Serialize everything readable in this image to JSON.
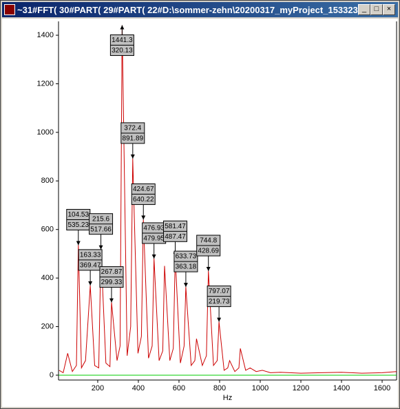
{
  "window": {
    "title": "~31#FFT( 30#PART( 29#PART( 22#D:\\sommer-zehn\\20200317_myProject_153323..."
  },
  "chart_data": {
    "type": "line",
    "xlabel": "Hz",
    "xlim": [
      7,
      1671
    ],
    "ylim": [
      -20,
      1457
    ],
    "xticks": [
      200,
      400,
      600,
      800,
      1000,
      1200,
      1400,
      1600
    ],
    "yticks": [
      0,
      200,
      400,
      600,
      800,
      1000,
      1200,
      1400
    ],
    "series": [
      {
        "color": "#cc0000",
        "x": [
          10,
          30,
          52,
          75,
          95,
          104.53,
          120,
          140,
          163.33,
          185,
          205,
          215.6,
          240,
          260,
          267.87,
          295,
          310,
          320.13,
          345,
          362,
          372.4,
          398,
          415,
          424.67,
          450,
          468,
          476.93,
          502,
          520,
          529,
          555,
          572,
          581.47,
          607,
          625,
          633.73,
          660,
          678,
          686,
          715,
          735,
          744.8,
          770,
          788,
          797.07,
          822,
          840,
          849,
          875,
          895,
          902,
          928,
          950,
          980,
          1010,
          1050,
          1100,
          1200,
          1300,
          1400,
          1500,
          1600,
          1671
        ],
        "values": [
          20,
          10,
          90,
          15,
          40,
          535.23,
          30,
          60,
          369.47,
          40,
          30,
          517.66,
          50,
          35,
          299.33,
          60,
          120,
          1441.3,
          80,
          200,
          891.89,
          90,
          160,
          640.22,
          70,
          120,
          479.95,
          60,
          100,
          450,
          60,
          110,
          487.47,
          50,
          120,
          363.18,
          40,
          60,
          150,
          40,
          80,
          428.69,
          40,
          60,
          219.73,
          20,
          30,
          60,
          15,
          30,
          110,
          20,
          30,
          15,
          20,
          10,
          12,
          8,
          10,
          12,
          8,
          10,
          15
        ]
      },
      {
        "color": "#00cc00",
        "x": [
          7,
          1671
        ],
        "values": [
          0,
          0
        ]
      }
    ],
    "annotations": [
      {
        "x": 104.53,
        "y": 535.23
      },
      {
        "x": 163.33,
        "y": 369.47
      },
      {
        "x": 215.6,
        "y": 517.66
      },
      {
        "x": 267.87,
        "y": 299.33
      },
      {
        "y": 1441.3,
        "x": 320.13
      },
      {
        "x": 372.4,
        "y": 891.89
      },
      {
        "x": 424.67,
        "y": 640.22
      },
      {
        "x": 476.93,
        "y": 479.95
      },
      {
        "x": 581.47,
        "y": 487.47
      },
      {
        "x": 633.73,
        "y": 363.18
      },
      {
        "x": 744.8,
        "y": 428.69
      },
      {
        "x": 797.07,
        "y": 219.73
      }
    ]
  }
}
